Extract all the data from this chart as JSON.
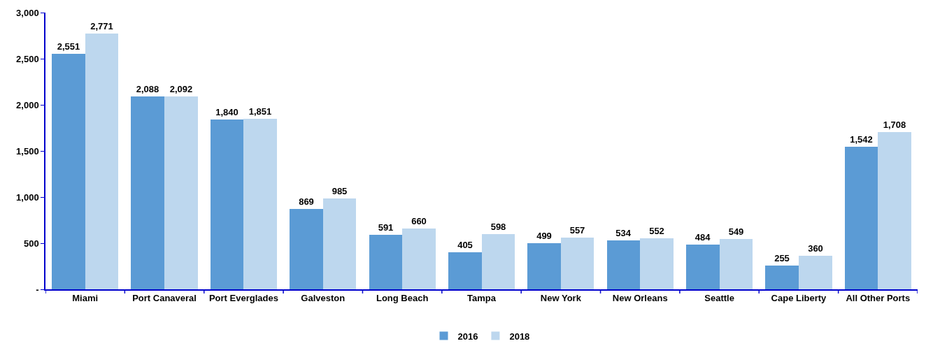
{
  "chart_data": {
    "type": "bar",
    "categories": [
      "Miami",
      "Port Canaveral",
      "Port Everglades",
      "Galveston",
      "Long Beach",
      "Tampa",
      "New York",
      "New Orleans",
      "Seattle",
      "Cape Liberty",
      "All Other Ports"
    ],
    "series": [
      {
        "name": "2016",
        "color": "#5b9bd5",
        "values": [
          2551,
          2088,
          1840,
          869,
          591,
          405,
          499,
          534,
          484,
          255,
          1542
        ],
        "value_labels": [
          "2,551",
          "2,088",
          "1,840",
          "869",
          "591",
          "405",
          "499",
          "534",
          "484",
          "255",
          "1,542"
        ]
      },
      {
        "name": "2018",
        "color": "#bdd7ee",
        "values": [
          2771,
          2092,
          1851,
          985,
          660,
          598,
          557,
          552,
          549,
          360,
          1708
        ],
        "value_labels": [
          "2,771",
          "2,092",
          "1,851",
          "985",
          "660",
          "598",
          "557",
          "552",
          "549",
          "360",
          "1,708"
        ]
      }
    ],
    "ylim": [
      0,
      3000
    ],
    "yticks": [
      {
        "value": 0,
        "label": "-"
      },
      {
        "value": 500,
        "label": "500"
      },
      {
        "value": 1000,
        "label": "1,000"
      },
      {
        "value": 1500,
        "label": "1,500"
      },
      {
        "value": 2000,
        "label": "2,000"
      },
      {
        "value": 2500,
        "label": "2,500"
      },
      {
        "value": 3000,
        "label": "3,000"
      }
    ],
    "legend": "bottom"
  }
}
